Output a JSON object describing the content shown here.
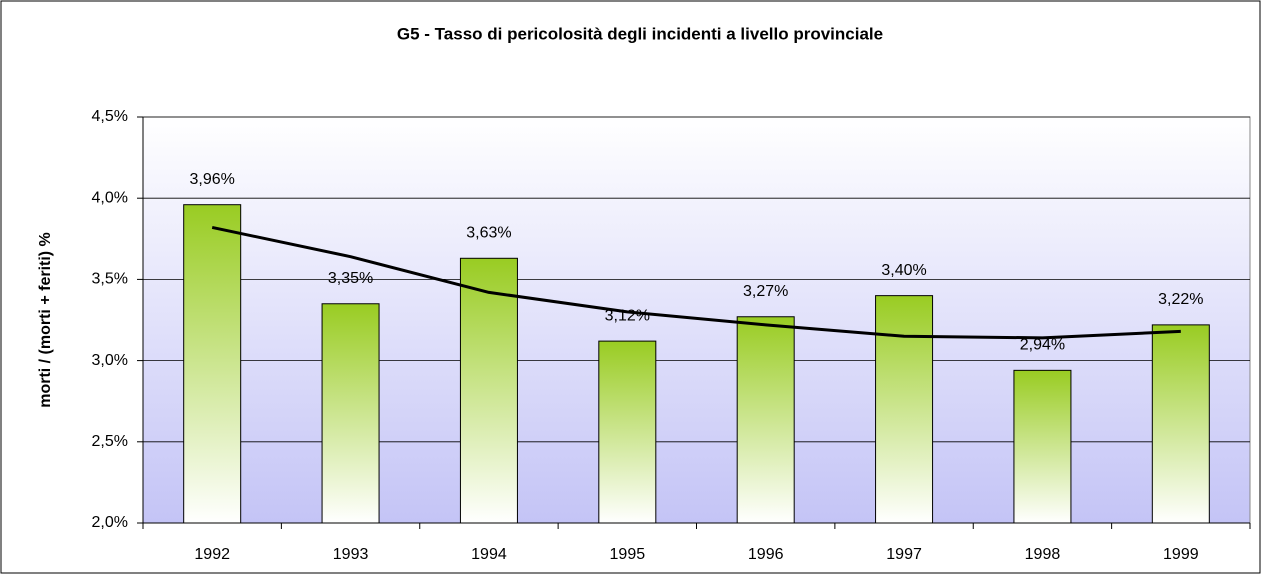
{
  "chart_data": {
    "type": "bar",
    "title": "G5 - Tasso di pericolosità degli incidenti a livello provinciale",
    "y_label": "morti / (morti + feriti) %",
    "categories": [
      "1992",
      "1993",
      "1994",
      "1995",
      "1996",
      "1997",
      "1998",
      "1999"
    ],
    "values": [
      3.96,
      3.35,
      3.63,
      3.12,
      3.27,
      3.4,
      2.94,
      3.22
    ],
    "value_labels": [
      "3,96%",
      "3,35%",
      "3,63%",
      "3,12%",
      "3,27%",
      "3,40%",
      "2,94%",
      "3,22%"
    ],
    "color": "#99cc22",
    "trend": {
      "color": "#000000",
      "values": [
        3.82,
        3.64,
        3.42,
        3.3,
        3.22,
        3.15,
        3.14,
        3.18
      ]
    },
    "ylim": [
      2.0,
      4.5
    ],
    "yticks": [
      {
        "value": 2.0,
        "label": "2,0%"
      },
      {
        "value": 2.5,
        "label": "2,5%"
      },
      {
        "value": 3.0,
        "label": "3,0%"
      },
      {
        "value": 3.5,
        "label": "3,5%"
      },
      {
        "value": 4.0,
        "label": "4,0%"
      },
      {
        "value": 4.5,
        "label": "4,5%"
      }
    ],
    "grid": true
  }
}
